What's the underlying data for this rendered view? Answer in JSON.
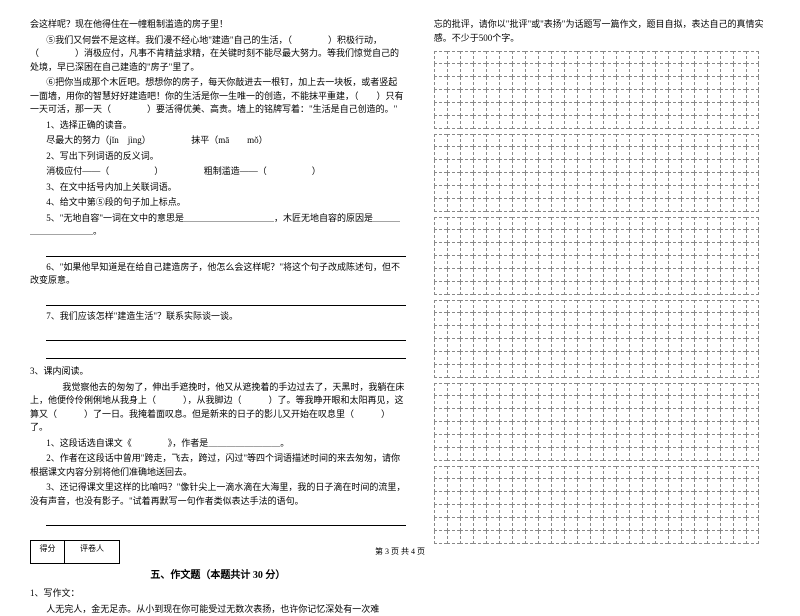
{
  "left": {
    "p1": "会这样呢？现在他得住在一幢粗制滥造的房子里！",
    "p2": "⑤我们又何尝不是这样。我们漫不经心地\"建造\"自己的生活，（　　　　）积极行动，（　　　　）消极应付，凡事不肯精益求精，在关键时刻不能尽最大努力。等我们惊觉自己的处境，早已深困在自己建造的\"房子\"里了。",
    "p3": "⑥把你当成那个木匠吧。想想你的房子，每天你敲进去一根钉，加上去一块板，或者竖起一面墙，用你的智慧好好建造吧！你的生活是你一生唯一的创造，不能抹平重建，（　　）只有一天可活，那一天（　　　　）要活得优美、高贵。墙上的铭牌写着：\"生活是自己创造的。\"",
    "q1": "1、选择正确的读音。",
    "q1a": "尽最大的努力（jǐn　jìng）　　　　　抹平（mā　　mǒ）",
    "q2": "2、写出下列词语的反义词。",
    "q2a": "消极应付——（　　　　　）　　　　　粗制滥造——（　　　　　）",
    "q3": "3、在文中括号内加上关联词语。",
    "q4": "4、给文中第⑤段的句子加上标点。",
    "q5": "5、\"无地自容\"一词在文中的意思是＿＿＿＿＿＿＿＿＿＿，木匠无地自容的原因是＿＿＿＿＿＿＿＿＿＿。",
    "q6": "6、\"如果他早知道是在给自己建造房子，他怎么会这样呢？\"将这个句子改成陈述句，但不改变原意。",
    "q7": "7、我们应该怎样\"建造生活\"？联系实际谈一谈。",
    "sec3_title": "3、课内阅读。",
    "sec3_p": "我觉察他去的匆匆了，伸出手遮挽时，他又从遮挽着的手边过去了，天黑时，我躺在床上，他便伶伶俐俐地从我身上（　　　），从我脚边（　　　）了。等我睁开眼和太阳再见，这算又（　　　）了一日。我掩着面叹息。但是新来的日子的影儿又开始在叹息里（　　　）了。",
    "sec3_q1": "1、这段话选自课文《　　　　》，作者是＿＿＿＿＿＿＿＿。",
    "sec3_q2": "2、作者在这段话中曾用\"跨走，飞去，跨过，闪过\"等四个词语描述时间的来去匆匆，请你根据课文内容分别将他们准确地送回去。",
    "sec3_q3": "3、还记得课文里这样的比喻吗？\"像针尖上一滴水滴在大海里，我的日子滴在时间的流里，没有声音，也没有影子。\"试着再默写一句作者类似表达手法的语句。",
    "score_label1": "得分",
    "score_label2": "评卷人",
    "section5_title": "五、作文题（本题共计 30 分）",
    "writing_title": "1、写作文：",
    "writing_body": "人无完人，金无足赤。从小到现在你可能受过无数次表扬，也许你记忆深处有一次难"
  },
  "right": {
    "p1": "忘的批评，请你以\"批评\"或\"表扬\"为话题写一篇作文，题目自拟，表达自己的真情实感。不少于500个字。"
  },
  "footer": "第 3 页  共 4 页",
  "grid": {
    "cols": 25,
    "groups": 6,
    "rows_per_group": 6
  },
  "colors": {
    "text": "#000000",
    "grid": "#888888",
    "bg": "#ffffff"
  }
}
